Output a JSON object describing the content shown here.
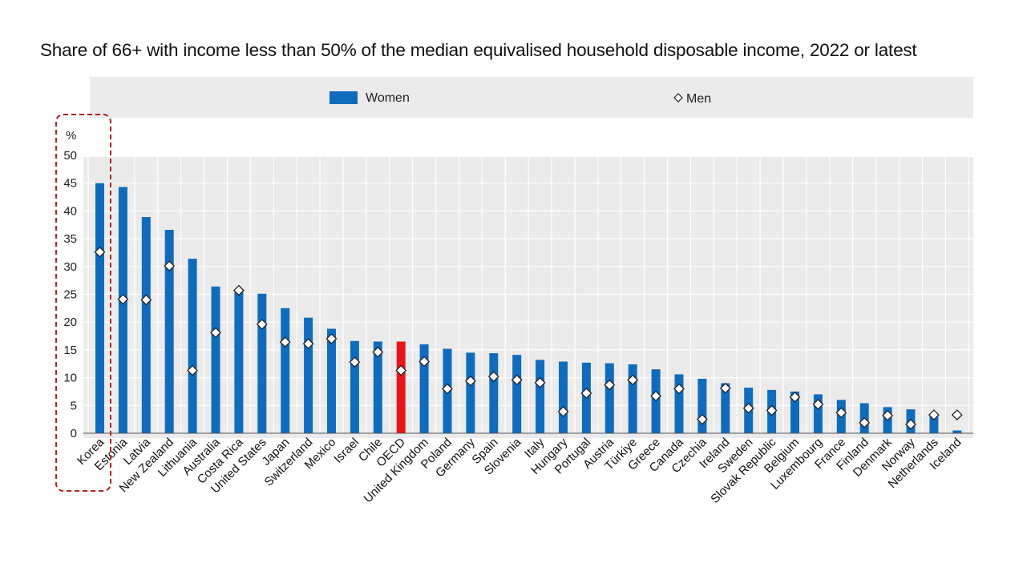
{
  "chart_data": {
    "type": "bar",
    "title": "Share of 66+ with income less than 50% of the median equivalised household disposable income, 2022 or latest",
    "ylabel": "%",
    "ylim": [
      0,
      50
    ],
    "yticks": [
      0,
      5,
      10,
      15,
      20,
      25,
      30,
      35,
      40,
      45,
      50
    ],
    "grid": true,
    "legend_position": "top",
    "highlight": "Korea",
    "categories": [
      "Korea",
      "Estonia",
      "Latvia",
      "New Zealand",
      "Lithuania",
      "Australia",
      "Costa Rica",
      "United States",
      "Japan",
      "Switzerland",
      "Mexico",
      "Israel",
      "Chile",
      "OECD",
      "United Kingdom",
      "Poland",
      "Germany",
      "Spain",
      "Slovenia",
      "Italy",
      "Hungary",
      "Portugal",
      "Austria",
      "Türkiye",
      "Greece",
      "Canada",
      "Czechia",
      "Ireland",
      "Sweden",
      "Slovak Republic",
      "Belgium",
      "Luxembourg",
      "France",
      "Finland",
      "Denmark",
      "Norway",
      "Netherlands",
      "Iceland"
    ],
    "series": [
      {
        "name": "Women",
        "marker": "bar",
        "color": "#0f6cbd",
        "highlight_color": "#e8161b",
        "highlight_category": "OECD",
        "values": [
          45.0,
          44.3,
          38.9,
          36.6,
          31.4,
          26.4,
          25.6,
          25.1,
          22.5,
          20.8,
          18.8,
          16.6,
          16.5,
          16.5,
          16.0,
          15.2,
          14.5,
          14.4,
          14.1,
          13.2,
          12.9,
          12.7,
          12.6,
          12.4,
          11.5,
          10.6,
          9.8,
          9.0,
          8.2,
          7.8,
          7.5,
          7.0,
          6.0,
          5.4,
          4.7,
          4.3,
          3.4,
          0.5
        ]
      },
      {
        "name": "Men",
        "marker": "diamond",
        "color": "#ffffff",
        "values": [
          32.6,
          24.1,
          24.0,
          30.1,
          11.3,
          18.1,
          25.7,
          19.6,
          16.4,
          16.1,
          17.0,
          12.8,
          14.6,
          11.3,
          12.9,
          8.0,
          9.4,
          10.2,
          9.6,
          9.1,
          3.9,
          7.2,
          8.7,
          9.6,
          6.7,
          8.0,
          2.5,
          8.1,
          4.5,
          4.1,
          6.5,
          5.2,
          3.7,
          1.9,
          3.2,
          1.6,
          3.3,
          3.3
        ]
      }
    ]
  }
}
